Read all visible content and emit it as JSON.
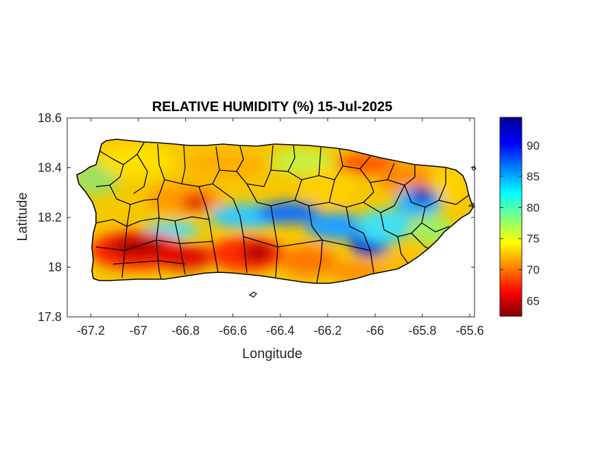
{
  "title": "RELATIVE HUMIDITY (%) 15-Jul-2025",
  "xlabel": "Longitude",
  "ylabel": "Latitude",
  "map": {
    "region": "Puerto Rico",
    "variable": "relative humidity",
    "units": "%",
    "colormap": "jet",
    "boundaries": "municipality outlines in black"
  },
  "axes": {
    "xlim": [
      -67.3,
      -65.58
    ],
    "ylim": [
      17.8,
      18.6
    ],
    "xticks": [
      -67.2,
      -67,
      -66.8,
      -66.6,
      -66.4,
      -66.2,
      -66,
      -65.8,
      -65.6
    ],
    "xtick_labels": [
      "-67.2",
      "-67",
      "-66.8",
      "-66.6",
      "-66.4",
      "-66.2",
      "-66",
      "-65.8",
      "-65.6"
    ],
    "yticks": [
      17.8,
      18,
      18.2,
      18.4,
      18.6
    ],
    "ytick_labels": [
      "17.8",
      "18",
      "18.2",
      "18.4",
      "18.6"
    ]
  },
  "colorbar": {
    "range": [
      62.5,
      94.5
    ],
    "ticks": [
      65,
      70,
      75,
      80,
      85,
      90
    ],
    "tick_labels": [
      "65",
      "70",
      "75",
      "80",
      "85",
      "90"
    ]
  },
  "colors": {
    "dry": "#7f0000",
    "moist": "#00007f"
  }
}
